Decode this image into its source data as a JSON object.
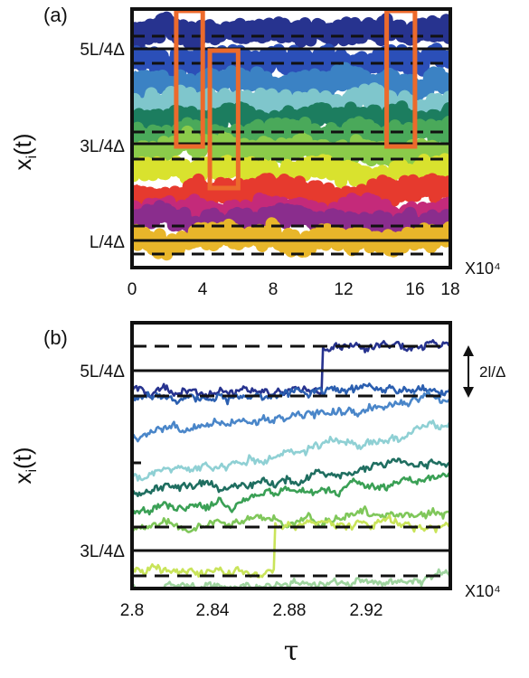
{
  "chart_data": [
    {
      "panel": "(a)",
      "type": "line",
      "ylabel": "x_i(t)",
      "y_ticks": [
        "5L/4Δ",
        "3L/4Δ",
        "L/4Δ"
      ],
      "x_ticks": [
        "0",
        "4",
        "8",
        "12",
        "16",
        "18"
      ],
      "x_multiplier": "X10⁴",
      "xlim": [
        0,
        18
      ],
      "series_colors": [
        "#27338f",
        "#2b4fb8",
        "#3b82c4",
        "#7fc6cc",
        "#1c7d5f",
        "#4aa95a",
        "#8bcb4a",
        "#d9e22e",
        "#e63a2e",
        "#c42a7a",
        "#8a2d8d",
        "#e8b62a"
      ],
      "highlight_color": "#ec6a2c",
      "highlight_windows": [
        [
          2.5,
          4.0
        ],
        [
          4.4,
          6.0
        ],
        [
          14.4,
          16.0
        ]
      ]
    },
    {
      "panel": "(b)",
      "type": "line",
      "ylabel": "x_i(t)",
      "xlabel": "τ",
      "y_ticks": [
        "5L/4Δ",
        "3L/4Δ"
      ],
      "x_ticks": [
        "2.8",
        "2.84",
        "2.88",
        "2.92"
      ],
      "x_multiplier": "X10⁴",
      "xlim": [
        2.8,
        2.95
      ],
      "arrow_label": "2l/Δ",
      "series_colors": [
        "#27338f",
        "#2b5fb0",
        "#4a86c9",
        "#8fd0d4",
        "#1f6e60",
        "#3aa055",
        "#7fc75a",
        "#c9e45a",
        "#9fd49f"
      ]
    }
  ]
}
